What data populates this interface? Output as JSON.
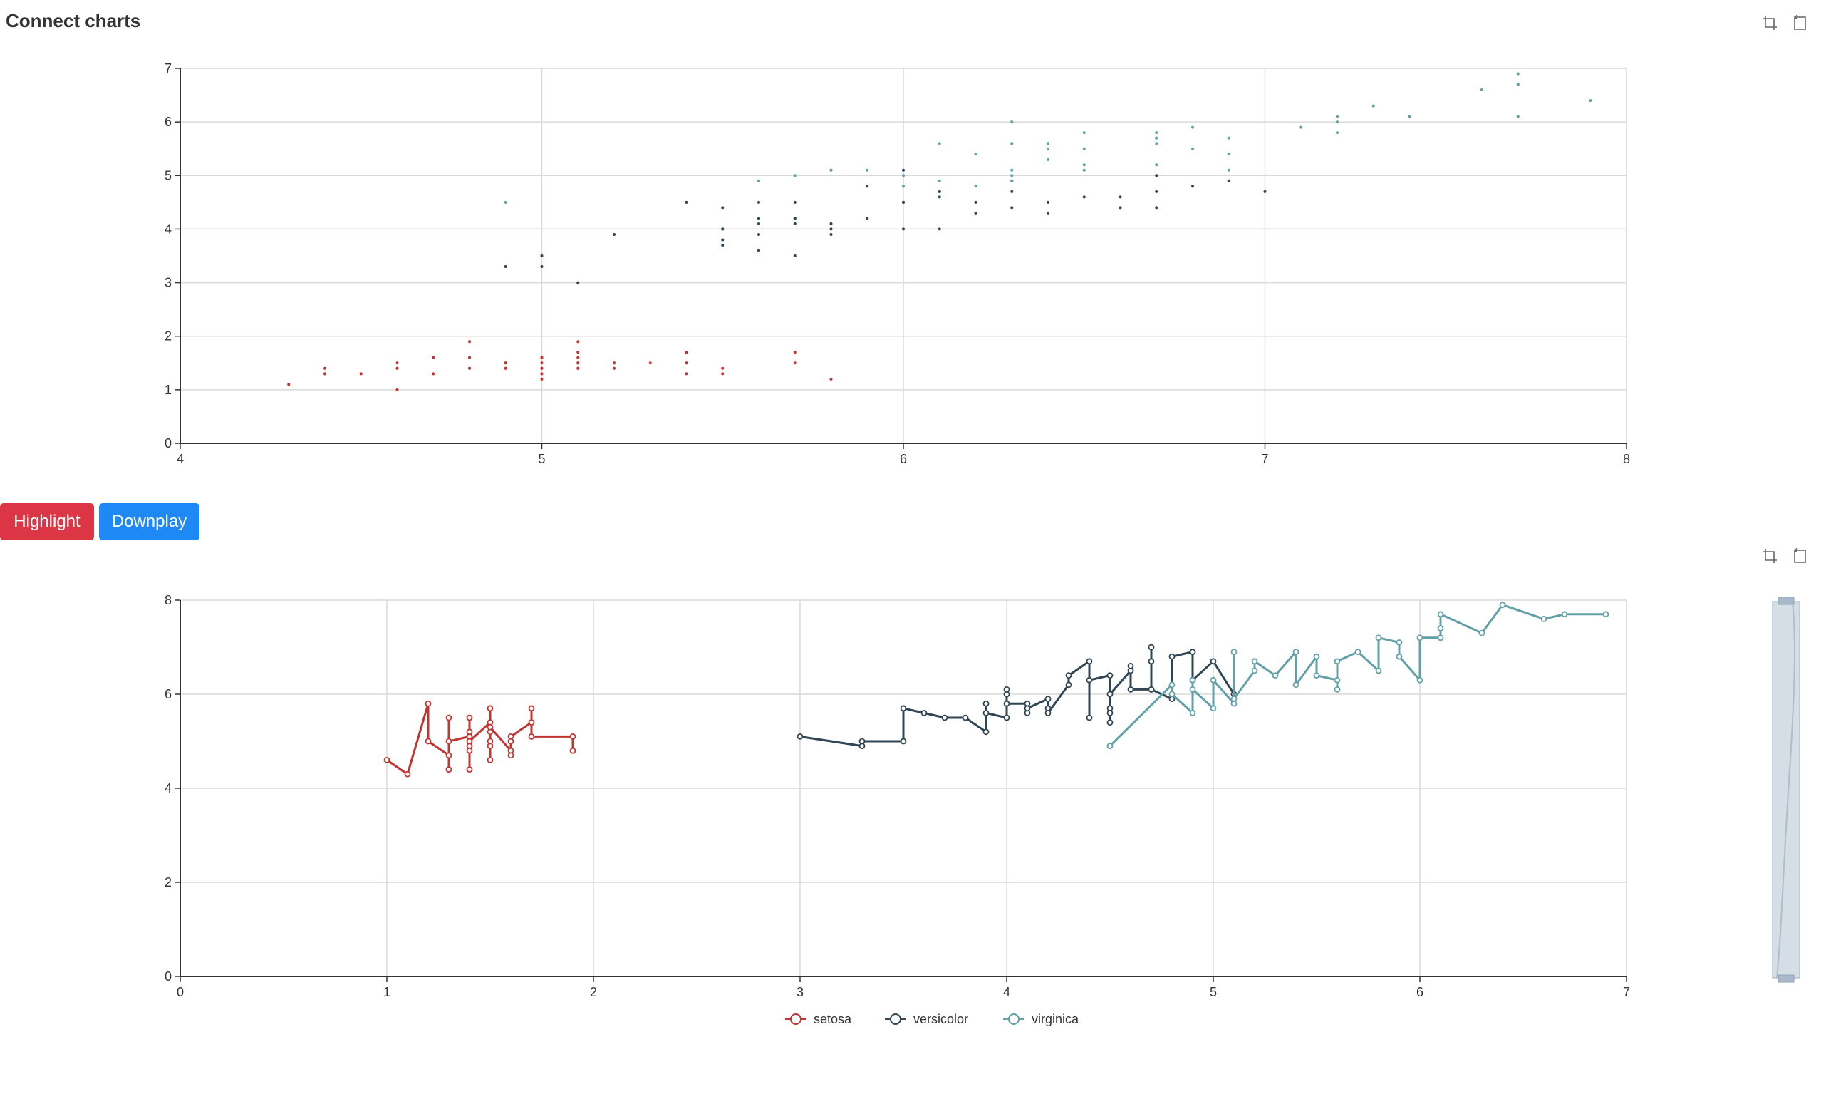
{
  "page": {
    "title": "Connect charts"
  },
  "buttons": {
    "highlight_label": "Highlight",
    "downplay_label": "Downplay"
  },
  "toolbox": [
    "data-zoom-icon",
    "restore-icon"
  ],
  "colors": {
    "setosa": "#c23531",
    "versicolor": "#2f4554",
    "virginica": "#61a0a8",
    "button_highlight": "#dc3545",
    "button_downplay": "#1e88f4"
  },
  "chart_data": [
    {
      "type": "scatter",
      "title": "",
      "xlim": [
        4,
        8
      ],
      "ylim": [
        0,
        7
      ],
      "x_ticks": [
        4,
        5,
        6,
        7,
        8
      ],
      "y_ticks": [
        0,
        1,
        2,
        3,
        4,
        5,
        6,
        7
      ],
      "grid": true,
      "series": [
        {
          "name": "setosa",
          "color": "#c23531",
          "points": [
            [
              5.1,
              1.4
            ],
            [
              4.9,
              1.4
            ],
            [
              4.7,
              1.3
            ],
            [
              4.6,
              1.5
            ],
            [
              5.0,
              1.4
            ],
            [
              5.4,
              1.7
            ],
            [
              4.6,
              1.4
            ],
            [
              5.0,
              1.5
            ],
            [
              4.4,
              1.4
            ],
            [
              4.9,
              1.5
            ],
            [
              5.4,
              1.5
            ],
            [
              4.8,
              1.6
            ],
            [
              4.8,
              1.4
            ],
            [
              4.3,
              1.1
            ],
            [
              5.8,
              1.2
            ],
            [
              5.7,
              1.5
            ],
            [
              5.4,
              1.3
            ],
            [
              5.1,
              1.4
            ],
            [
              5.7,
              1.7
            ],
            [
              5.1,
              1.5
            ],
            [
              5.4,
              1.7
            ],
            [
              5.1,
              1.5
            ],
            [
              4.6,
              1.0
            ],
            [
              5.1,
              1.7
            ],
            [
              4.8,
              1.9
            ],
            [
              5.0,
              1.6
            ],
            [
              5.0,
              1.6
            ],
            [
              5.2,
              1.5
            ],
            [
              5.2,
              1.4
            ],
            [
              4.7,
              1.6
            ],
            [
              4.8,
              1.6
            ],
            [
              5.4,
              1.5
            ],
            [
              5.2,
              1.5
            ],
            [
              5.5,
              1.4
            ],
            [
              4.9,
              1.5
            ],
            [
              5.0,
              1.2
            ],
            [
              5.5,
              1.3
            ],
            [
              4.9,
              1.4
            ],
            [
              4.4,
              1.3
            ],
            [
              5.1,
              1.5
            ],
            [
              5.0,
              1.3
            ],
            [
              4.5,
              1.3
            ],
            [
              4.4,
              1.3
            ],
            [
              5.0,
              1.6
            ],
            [
              5.1,
              1.9
            ],
            [
              4.8,
              1.4
            ],
            [
              5.1,
              1.6
            ],
            [
              4.6,
              1.4
            ],
            [
              5.3,
              1.5
            ],
            [
              5.0,
              1.4
            ]
          ]
        },
        {
          "name": "versicolor",
          "color": "#2f4554",
          "points": [
            [
              7.0,
              4.7
            ],
            [
              6.4,
              4.5
            ],
            [
              6.9,
              4.9
            ],
            [
              5.5,
              4.0
            ],
            [
              6.5,
              4.6
            ],
            [
              5.7,
              4.5
            ],
            [
              6.3,
              4.7
            ],
            [
              4.9,
              3.3
            ],
            [
              6.6,
              4.6
            ],
            [
              5.2,
              3.9
            ],
            [
              5.0,
              3.5
            ],
            [
              5.9,
              4.2
            ],
            [
              6.0,
              4.0
            ],
            [
              6.1,
              4.7
            ],
            [
              5.6,
              3.6
            ],
            [
              6.7,
              4.4
            ],
            [
              5.6,
              4.5
            ],
            [
              5.8,
              4.1
            ],
            [
              6.2,
              4.5
            ],
            [
              5.6,
              3.9
            ],
            [
              5.9,
              4.8
            ],
            [
              6.1,
              4.0
            ],
            [
              6.3,
              4.9
            ],
            [
              6.1,
              4.7
            ],
            [
              6.4,
              4.3
            ],
            [
              6.6,
              4.4
            ],
            [
              6.8,
              4.8
            ],
            [
              6.7,
              5.0
            ],
            [
              6.0,
              4.5
            ],
            [
              5.7,
              3.5
            ],
            [
              5.5,
              3.8
            ],
            [
              5.5,
              3.7
            ],
            [
              5.8,
              3.9
            ],
            [
              6.0,
              5.1
            ],
            [
              5.4,
              4.5
            ],
            [
              6.0,
              4.5
            ],
            [
              6.7,
              4.7
            ],
            [
              6.3,
              4.4
            ],
            [
              5.6,
              4.1
            ],
            [
              5.5,
              4.0
            ],
            [
              5.5,
              4.4
            ],
            [
              6.1,
              4.6
            ],
            [
              5.8,
              4.0
            ],
            [
              5.0,
              3.3
            ],
            [
              5.6,
              4.2
            ],
            [
              5.7,
              4.2
            ],
            [
              5.7,
              4.2
            ],
            [
              6.2,
              4.3
            ],
            [
              5.1,
              3.0
            ],
            [
              5.7,
              4.1
            ]
          ]
        },
        {
          "name": "virginica",
          "color": "#61a0a8",
          "points": [
            [
              6.3,
              6.0
            ],
            [
              5.8,
              5.1
            ],
            [
              7.1,
              5.9
            ],
            [
              6.3,
              5.6
            ],
            [
              6.5,
              5.8
            ],
            [
              7.6,
              6.6
            ],
            [
              4.9,
              4.5
            ],
            [
              7.3,
              6.3
            ],
            [
              6.7,
              5.8
            ],
            [
              7.2,
              6.1
            ],
            [
              6.5,
              5.1
            ],
            [
              6.4,
              5.3
            ],
            [
              6.8,
              5.5
            ],
            [
              5.7,
              5.0
            ],
            [
              5.8,
              5.1
            ],
            [
              6.4,
              5.3
            ],
            [
              6.5,
              5.5
            ],
            [
              7.7,
              6.7
            ],
            [
              7.7,
              6.9
            ],
            [
              6.0,
              5.0
            ],
            [
              6.9,
              5.7
            ],
            [
              5.6,
              4.9
            ],
            [
              7.7,
              6.7
            ],
            [
              6.3,
              4.9
            ],
            [
              6.7,
              5.7
            ],
            [
              7.2,
              6.0
            ],
            [
              6.2,
              4.8
            ],
            [
              6.1,
              4.9
            ],
            [
              6.4,
              5.6
            ],
            [
              7.2,
              5.8
            ],
            [
              7.4,
              6.1
            ],
            [
              7.9,
              6.4
            ],
            [
              6.4,
              5.6
            ],
            [
              6.3,
              5.1
            ],
            [
              6.1,
              5.6
            ],
            [
              7.7,
              6.1
            ],
            [
              6.3,
              5.6
            ],
            [
              6.4,
              5.5
            ],
            [
              6.0,
              4.8
            ],
            [
              6.9,
              5.4
            ],
            [
              6.7,
              5.6
            ],
            [
              6.9,
              5.1
            ],
            [
              5.8,
              5.1
            ],
            [
              6.8,
              5.9
            ],
            [
              6.7,
              5.7
            ],
            [
              6.7,
              5.2
            ],
            [
              6.3,
              5.0
            ],
            [
              6.5,
              5.2
            ],
            [
              6.2,
              5.4
            ],
            [
              5.9,
              5.1
            ]
          ]
        }
      ]
    },
    {
      "type": "line",
      "title": "",
      "xlim": [
        0,
        7
      ],
      "ylim": [
        0,
        8
      ],
      "x_ticks": [
        0,
        1,
        2,
        3,
        4,
        5,
        6,
        7
      ],
      "y_ticks": [
        0,
        2,
        4,
        6,
        8
      ],
      "grid": true,
      "legend": {
        "position": "bottom-center",
        "items": [
          "setosa",
          "versicolor",
          "virginica"
        ]
      },
      "datazoom": "vertical-slider-right",
      "series": [
        {
          "name": "setosa",
          "color": "#c23531",
          "points": [
            [
              1.0,
              4.6
            ],
            [
              1.1,
              4.3
            ],
            [
              1.2,
              5.8
            ],
            [
              1.2,
              5.0
            ],
            [
              1.3,
              4.7
            ],
            [
              1.3,
              4.4
            ],
            [
              1.3,
              4.4
            ],
            [
              1.3,
              5.5
            ],
            [
              1.3,
              5.0
            ],
            [
              1.4,
              5.1
            ],
            [
              1.4,
              4.9
            ],
            [
              1.4,
              4.4
            ],
            [
              1.4,
              4.8
            ],
            [
              1.4,
              5.2
            ],
            [
              1.4,
              5.5
            ],
            [
              1.4,
              5.0
            ],
            [
              1.5,
              5.4
            ],
            [
              1.5,
              4.9
            ],
            [
              1.5,
              4.6
            ],
            [
              1.5,
              5.7
            ],
            [
              1.5,
              5.2
            ],
            [
              1.5,
              5.0
            ],
            [
              1.5,
              5.3
            ],
            [
              1.6,
              4.8
            ],
            [
              1.6,
              5.0
            ],
            [
              1.6,
              4.7
            ],
            [
              1.6,
              5.1
            ],
            [
              1.7,
              5.4
            ],
            [
              1.7,
              5.7
            ],
            [
              1.7,
              5.1
            ],
            [
              1.9,
              5.1
            ],
            [
              1.9,
              4.8
            ]
          ]
        },
        {
          "name": "versicolor",
          "color": "#2f4554",
          "points": [
            [
              3.0,
              5.1
            ],
            [
              3.3,
              4.9
            ],
            [
              3.3,
              5.0
            ],
            [
              3.5,
              5.0
            ],
            [
              3.5,
              5.7
            ],
            [
              3.6,
              5.6
            ],
            [
              3.7,
              5.5
            ],
            [
              3.8,
              5.5
            ],
            [
              3.9,
              5.2
            ],
            [
              3.9,
              5.8
            ],
            [
              3.9,
              5.6
            ],
            [
              4.0,
              5.5
            ],
            [
              4.0,
              6.0
            ],
            [
              4.0,
              6.1
            ],
            [
              4.0,
              5.8
            ],
            [
              4.1,
              5.8
            ],
            [
              4.1,
              5.6
            ],
            [
              4.1,
              5.7
            ],
            [
              4.2,
              5.9
            ],
            [
              4.2,
              5.7
            ],
            [
              4.2,
              5.6
            ],
            [
              4.3,
              6.2
            ],
            [
              4.3,
              6.4
            ],
            [
              4.4,
              6.7
            ],
            [
              4.4,
              5.5
            ],
            [
              4.4,
              6.3
            ],
            [
              4.5,
              6.4
            ],
            [
              4.5,
              5.7
            ],
            [
              4.5,
              5.6
            ],
            [
              4.5,
              5.4
            ],
            [
              4.5,
              6.0
            ],
            [
              4.6,
              6.5
            ],
            [
              4.6,
              6.6
            ],
            [
              4.6,
              6.1
            ],
            [
              4.7,
              6.1
            ],
            [
              4.7,
              7.0
            ],
            [
              4.7,
              6.7
            ],
            [
              4.7,
              6.1
            ],
            [
              4.8,
              5.9
            ],
            [
              4.8,
              6.8
            ],
            [
              4.9,
              6.9
            ],
            [
              4.9,
              6.3
            ],
            [
              5.0,
              6.7
            ],
            [
              5.1,
              6.0
            ]
          ]
        },
        {
          "name": "virginica",
          "color": "#61a0a8",
          "points": [
            [
              4.5,
              4.9
            ],
            [
              4.8,
              6.2
            ],
            [
              4.8,
              6.0
            ],
            [
              4.9,
              5.6
            ],
            [
              4.9,
              6.3
            ],
            [
              4.9,
              6.1
            ],
            [
              5.0,
              5.7
            ],
            [
              5.0,
              6.3
            ],
            [
              5.1,
              5.8
            ],
            [
              5.1,
              6.9
            ],
            [
              5.1,
              5.9
            ],
            [
              5.2,
              6.5
            ],
            [
              5.2,
              6.7
            ],
            [
              5.3,
              6.4
            ],
            [
              5.4,
              6.9
            ],
            [
              5.4,
              6.2
            ],
            [
              5.5,
              6.8
            ],
            [
              5.5,
              6.4
            ],
            [
              5.6,
              6.3
            ],
            [
              5.6,
              6.1
            ],
            [
              5.6,
              6.7
            ],
            [
              5.7,
              6.9
            ],
            [
              5.8,
              6.5
            ],
            [
              5.8,
              7.2
            ],
            [
              5.9,
              7.1
            ],
            [
              5.9,
              6.8
            ],
            [
              6.0,
              6.3
            ],
            [
              6.0,
              7.2
            ],
            [
              6.1,
              7.2
            ],
            [
              6.1,
              7.4
            ],
            [
              6.1,
              7.7
            ],
            [
              6.3,
              7.3
            ],
            [
              6.4,
              7.9
            ],
            [
              6.6,
              7.6
            ],
            [
              6.7,
              7.7
            ],
            [
              6.9,
              7.7
            ]
          ]
        }
      ]
    }
  ]
}
